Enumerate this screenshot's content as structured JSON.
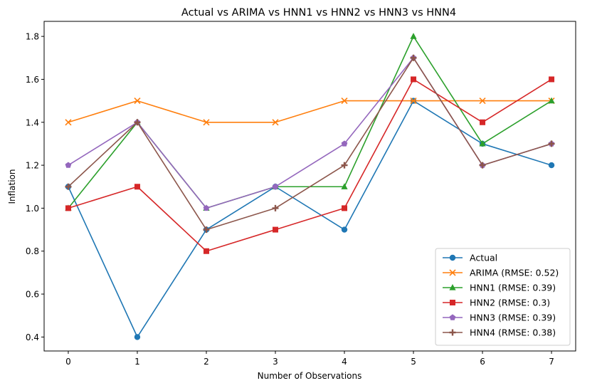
{
  "chart_data": {
    "type": "line",
    "title": "Actual vs ARIMA vs HNN1 vs HNN2 vs HNN3 vs HNN4",
    "xlabel": "Number of Observations",
    "ylabel": "Inflation",
    "x": [
      0,
      1,
      2,
      3,
      4,
      5,
      6,
      7
    ],
    "xlim": [
      -0.35,
      7.35
    ],
    "ylim": [
      0.335,
      1.87
    ],
    "xticks": [
      "0",
      "1",
      "2",
      "3",
      "4",
      "5",
      "6",
      "7"
    ],
    "yticks": [
      "0.4",
      "0.6",
      "0.8",
      "1.0",
      "1.2",
      "1.4",
      "1.6",
      "1.8"
    ],
    "grid": false,
    "legend_position": "lower right",
    "series": [
      {
        "name": "Actual",
        "color": "#1f77b4",
        "marker": "circle",
        "values": [
          1.1,
          0.4,
          0.9,
          1.1,
          0.9,
          1.5,
          1.3,
          1.2
        ]
      },
      {
        "name": "ARIMA (RMSE: 0.52)",
        "color": "#ff7f0e",
        "marker": "x",
        "values": [
          1.4,
          1.5,
          1.4,
          1.4,
          1.5,
          1.5,
          1.5,
          1.5
        ]
      },
      {
        "name": "HNN1 (RMSE: 0.39)",
        "color": "#2ca02c",
        "marker": "triangle",
        "values": [
          1.0,
          1.4,
          1.0,
          1.1,
          1.1,
          1.8,
          1.3,
          1.5
        ]
      },
      {
        "name": "HNN2 (RMSE: 0.3)",
        "color": "#d62728",
        "marker": "square",
        "values": [
          1.0,
          1.1,
          0.8,
          0.9,
          1.0,
          1.6,
          1.4,
          1.6
        ]
      },
      {
        "name": "HNN3 (RMSE: 0.39)",
        "color": "#9467bd",
        "marker": "pentagon",
        "values": [
          1.2,
          1.4,
          1.0,
          1.1,
          1.3,
          1.7,
          1.2,
          1.3
        ]
      },
      {
        "name": "HNN4 (RMSE: 0.38)",
        "color": "#8c564b",
        "marker": "plus",
        "values": [
          1.1,
          1.4,
          0.9,
          1.0,
          1.2,
          1.7,
          1.2,
          1.3
        ]
      }
    ]
  }
}
